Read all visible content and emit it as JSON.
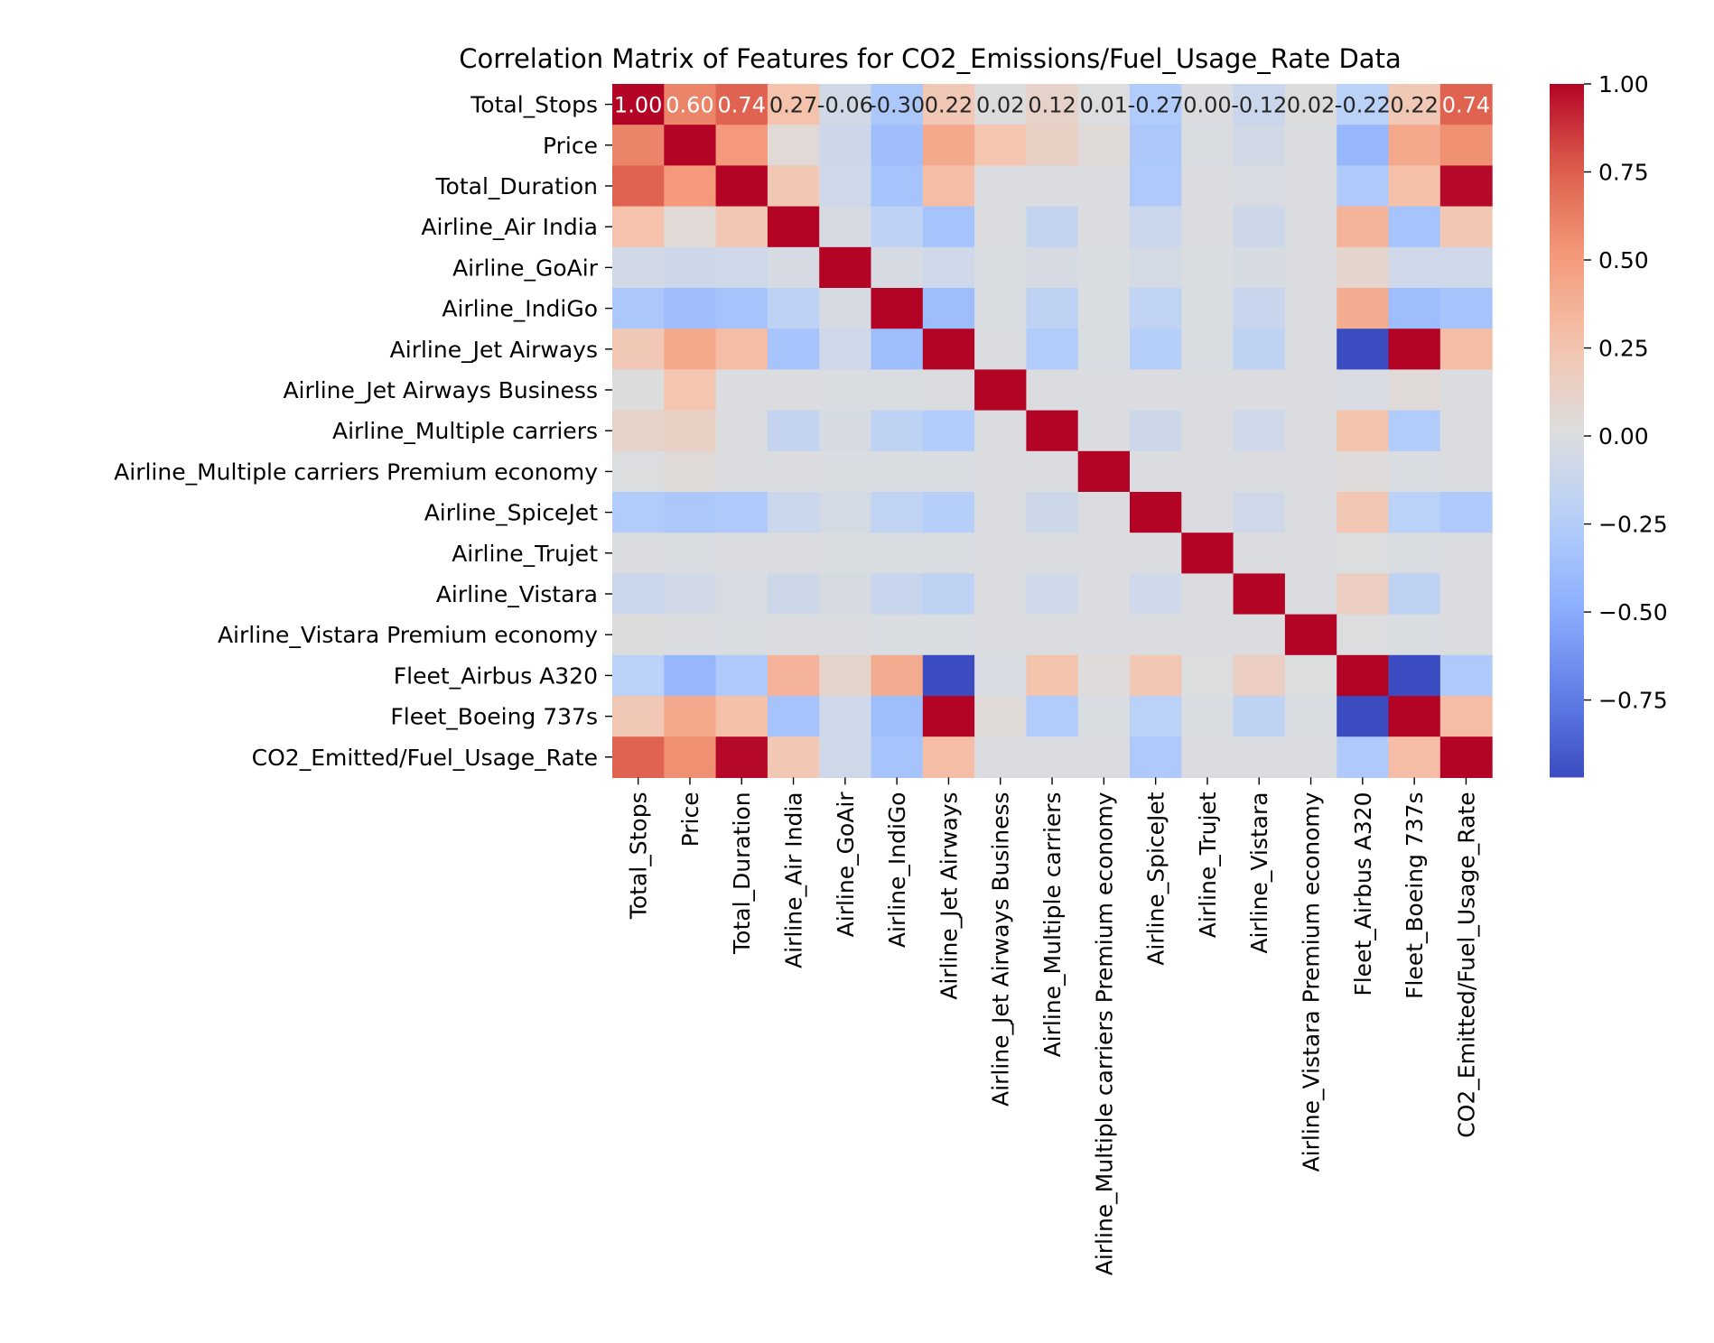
{
  "chart_data": {
    "type": "heatmap",
    "title": "Correlation Matrix of Features for CO2_Emissions/Fuel_Usage_Rate Data",
    "labels": [
      "Total_Stops",
      "Price",
      "Total_Duration",
      "Airline_Air India",
      "Airline_GoAir",
      "Airline_IndiGo",
      "Airline_Jet Airways",
      "Airline_Jet Airways Business",
      "Airline_Multiple carriers",
      "Airline_Multiple carriers Premium economy",
      "Airline_SpiceJet",
      "Airline_Trujet",
      "Airline_Vistara",
      "Airline_Vistara Premium economy",
      "Fleet_Airbus A320",
      "Fleet_Boeing 737s",
      "CO2_Emitted/Fuel_Usage_Rate"
    ],
    "matrix": [
      [
        1.0,
        0.6,
        0.74,
        0.27,
        -0.06,
        -0.3,
        0.22,
        0.02,
        0.12,
        0.01,
        -0.27,
        0.0,
        -0.12,
        0.02,
        -0.22,
        0.22,
        0.74
      ],
      [
        0.6,
        1.0,
        0.51,
        0.05,
        -0.09,
        -0.37,
        0.42,
        0.25,
        0.14,
        0.04,
        -0.3,
        -0.01,
        -0.06,
        0.0,
        -0.42,
        0.42,
        0.55
      ],
      [
        0.74,
        0.51,
        1.0,
        0.23,
        -0.08,
        -0.33,
        0.3,
        0.0,
        0.0,
        0.0,
        -0.28,
        0.0,
        -0.02,
        0.0,
        -0.28,
        0.28,
        0.99
      ],
      [
        0.27,
        0.05,
        0.23,
        1.0,
        -0.04,
        -0.2,
        -0.33,
        0.0,
        -0.15,
        0.0,
        -0.12,
        0.0,
        -0.1,
        0.0,
        0.36,
        -0.33,
        0.23
      ],
      [
        -0.06,
        -0.09,
        -0.08,
        -0.04,
        1.0,
        -0.04,
        -0.08,
        -0.01,
        -0.04,
        -0.01,
        -0.05,
        -0.01,
        -0.03,
        0.0,
        0.1,
        -0.08,
        -0.08
      ],
      [
        -0.3,
        -0.37,
        -0.33,
        -0.2,
        -0.04,
        1.0,
        -0.38,
        -0.01,
        -0.19,
        -0.01,
        -0.18,
        -0.01,
        -0.13,
        0.0,
        0.4,
        -0.38,
        -0.33
      ],
      [
        0.22,
        0.42,
        0.3,
        -0.33,
        -0.08,
        -0.38,
        1.0,
        0.0,
        -0.27,
        -0.01,
        -0.24,
        -0.01,
        -0.19,
        0.0,
        -0.97,
        1.0,
        0.3
      ],
      [
        0.02,
        0.25,
        0.0,
        0.0,
        -0.01,
        -0.01,
        0.0,
        1.0,
        0.0,
        0.0,
        0.0,
        0.0,
        0.0,
        0.0,
        -0.02,
        0.04,
        0.0
      ],
      [
        0.12,
        0.14,
        0.0,
        -0.15,
        -0.04,
        -0.19,
        -0.27,
        0.0,
        1.0,
        0.0,
        -0.1,
        0.0,
        -0.08,
        0.0,
        0.26,
        -0.27,
        0.0
      ],
      [
        0.01,
        0.04,
        0.0,
        0.0,
        -0.01,
        -0.01,
        -0.01,
        0.0,
        0.0,
        1.0,
        0.0,
        0.0,
        0.0,
        0.0,
        0.03,
        -0.01,
        0.0
      ],
      [
        -0.27,
        -0.3,
        -0.28,
        -0.12,
        -0.05,
        -0.18,
        -0.24,
        0.0,
        -0.1,
        0.0,
        1.0,
        0.0,
        -0.08,
        0.0,
        0.23,
        -0.22,
        -0.28
      ],
      [
        0.0,
        -0.01,
        0.0,
        0.0,
        -0.01,
        -0.01,
        -0.01,
        0.0,
        0.0,
        0.0,
        0.0,
        1.0,
        0.0,
        0.0,
        0.01,
        -0.01,
        0.0
      ],
      [
        -0.12,
        -0.06,
        -0.02,
        -0.1,
        -0.03,
        -0.13,
        -0.19,
        0.0,
        -0.08,
        0.0,
        -0.08,
        0.0,
        1.0,
        0.0,
        0.16,
        -0.19,
        0.0
      ],
      [
        0.02,
        0.0,
        -0.01,
        0.0,
        0.0,
        -0.01,
        -0.01,
        0.0,
        0.0,
        0.0,
        0.0,
        0.0,
        0.0,
        1.0,
        0.01,
        -0.01,
        0.0
      ],
      [
        -0.22,
        -0.42,
        -0.28,
        0.36,
        0.1,
        0.4,
        -0.97,
        -0.02,
        0.26,
        0.03,
        0.23,
        0.01,
        0.16,
        0.01,
        1.0,
        -0.97,
        -0.28
      ],
      [
        0.22,
        0.42,
        0.28,
        -0.33,
        -0.08,
        -0.38,
        1.0,
        0.04,
        -0.27,
        -0.01,
        -0.22,
        -0.01,
        -0.19,
        -0.01,
        -0.97,
        1.0,
        0.3
      ],
      [
        0.74,
        0.55,
        0.99,
        0.23,
        -0.08,
        -0.33,
        0.3,
        0.0,
        0.0,
        0.0,
        -0.28,
        0.0,
        0.0,
        0.0,
        -0.28,
        0.3,
        1.0
      ]
    ],
    "annotations": [
      "1.00",
      "0.60",
      "0.74",
      "0.27",
      "-0.06",
      "-0.30",
      "0.22",
      "0.02",
      "0.12",
      "0.01",
      "-0.27",
      "0.00",
      "-0.12",
      "0.02",
      "-0.22",
      "0.22",
      "0.74"
    ],
    "colormap": "coolwarm",
    "colorbar": {
      "ticks": [
        1.0,
        0.75,
        0.5,
        0.25,
        0.0,
        -0.25,
        -0.5,
        -0.75
      ],
      "tick_labels": [
        "1.00",
        "0.75",
        "0.50",
        "0.25",
        "0.00",
        "−0.25",
        "−0.50",
        "−0.75"
      ],
      "range": [
        -0.97,
        1.0
      ]
    }
  }
}
